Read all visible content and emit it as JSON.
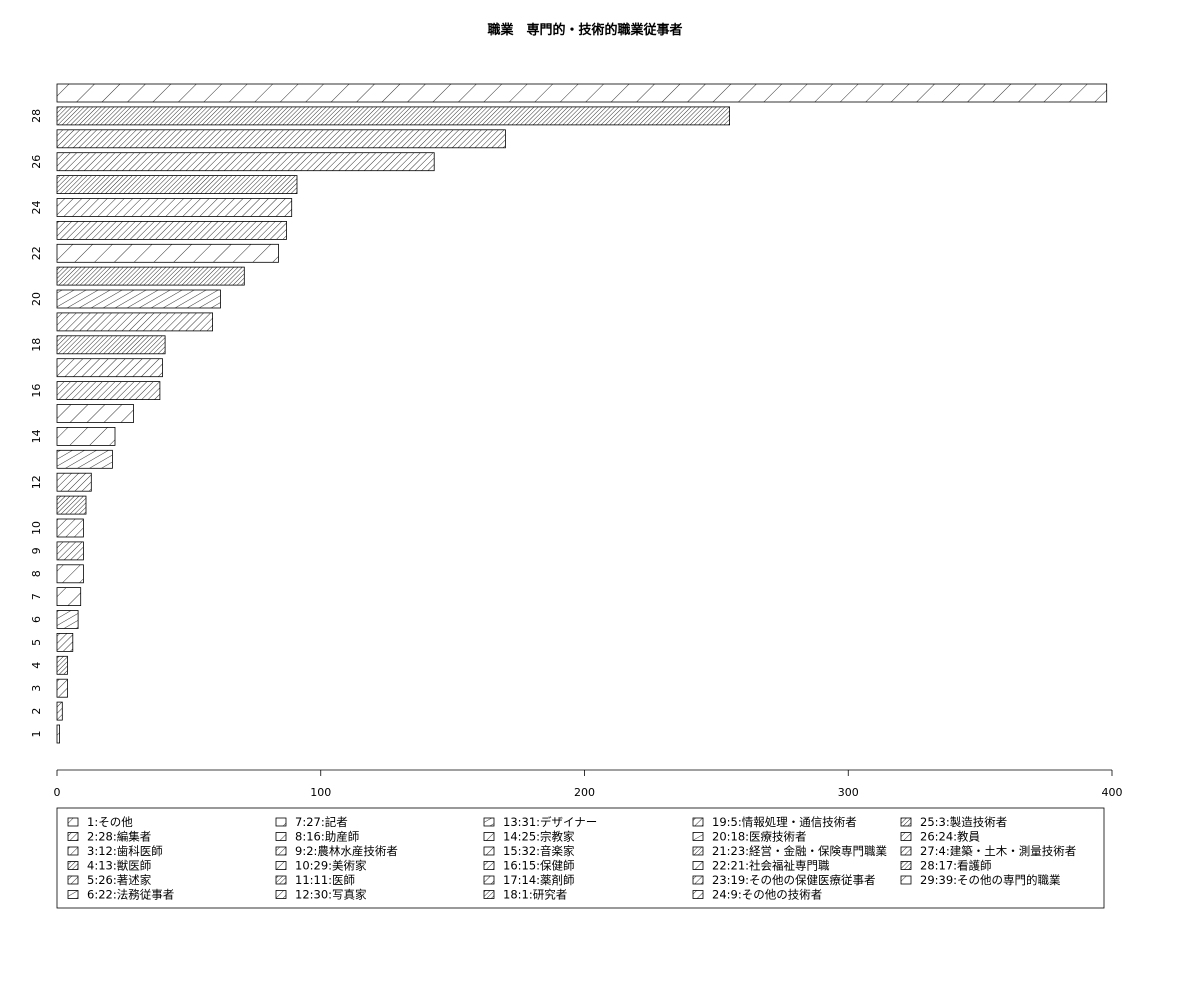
{
  "chart_data": {
    "type": "bar",
    "orientation": "horizontal",
    "title": "職業　専門的・技術的職業従事者",
    "xlabel": "",
    "ylabel": "",
    "xlim": [
      0,
      400
    ],
    "x_ticks": [
      0,
      100,
      200,
      300,
      400
    ],
    "y_ticks": [
      1,
      2,
      3,
      4,
      5,
      6,
      7,
      8,
      9,
      10,
      12,
      14,
      16,
      18,
      20,
      22,
      24,
      26,
      28
    ],
    "grid": false,
    "legend_position": "bottom",
    "bars": [
      {
        "position": 1,
        "value": 1,
        "legend": "1:その他"
      },
      {
        "position": 2,
        "value": 2,
        "legend": "2:28:編集者"
      },
      {
        "position": 3,
        "value": 4,
        "legend": "3:12:歯科医師"
      },
      {
        "position": 4,
        "value": 4,
        "legend": "4:13:獣医師"
      },
      {
        "position": 5,
        "value": 6,
        "legend": "5:26:著述家"
      },
      {
        "position": 6,
        "value": 8,
        "legend": "6:22:法務従事者"
      },
      {
        "position": 7,
        "value": 9,
        "legend": "7:27:記者"
      },
      {
        "position": 8,
        "value": 10,
        "legend": "8:16:助産師"
      },
      {
        "position": 9,
        "value": 10,
        "legend": "9:2:農林水産技術者"
      },
      {
        "position": 10,
        "value": 10,
        "legend": "10:29:美術家"
      },
      {
        "position": 11,
        "value": 11,
        "legend": "11:11:医師"
      },
      {
        "position": 12,
        "value": 13,
        "legend": "12:30:写真家"
      },
      {
        "position": 13,
        "value": 21,
        "legend": "13:31:デザイナー"
      },
      {
        "position": 14,
        "value": 22,
        "legend": "14:25:宗教家"
      },
      {
        "position": 15,
        "value": 29,
        "legend": "15:32:音楽家"
      },
      {
        "position": 16,
        "value": 39,
        "legend": "16:15:保健師"
      },
      {
        "position": 17,
        "value": 40,
        "legend": "17:14:薬剤師"
      },
      {
        "position": 18,
        "value": 41,
        "legend": "18:1:研究者"
      },
      {
        "position": 19,
        "value": 59,
        "legend": "19:5:情報処理・通信技術者"
      },
      {
        "position": 20,
        "value": 62,
        "legend": "20:18:医療技術者"
      },
      {
        "position": 21,
        "value": 71,
        "legend": "21:23:経営・金融・保険専門職業"
      },
      {
        "position": 22,
        "value": 84,
        "legend": "22:21:社会福祉専門職"
      },
      {
        "position": 23,
        "value": 87,
        "legend": "23:19:その他の保健医療従事者"
      },
      {
        "position": 24,
        "value": 89,
        "legend": "24:9:その他の技術者"
      },
      {
        "position": 25,
        "value": 91,
        "legend": "25:3:製造技術者"
      },
      {
        "position": 26,
        "value": 143,
        "legend": "26:24:教員"
      },
      {
        "position": 27,
        "value": 170,
        "legend": "27:4:建築・土木・測量技術者"
      },
      {
        "position": 28,
        "value": 255,
        "legend": "28:17:看護師"
      },
      {
        "position": 29,
        "value": 398,
        "legend": "29:39:その他の専門的職業"
      }
    ],
    "legend_columns": [
      [
        "1:その他",
        "2:28:編集者",
        "3:12:歯科医師",
        "4:13:獣医師",
        "5:26:著述家",
        "6:22:法務従事者"
      ],
      [
        "7:27:記者",
        "8:16:助産師",
        "9:2:農林水産技術者",
        "10:29:美術家",
        "11:11:医師",
        "12:30:写真家"
      ],
      [
        "13:31:デザイナー",
        "14:25:宗教家",
        "15:32:音楽家",
        "16:15:保健師",
        "17:14:薬剤師",
        "18:1:研究者"
      ],
      [
        "19:5:情報処理・通信技術者",
        "20:18:医療技術者",
        "21:23:経営・金融・保険専門職業",
        "22:21:社会福祉専門職",
        "23:19:その他の保健医療従事者",
        "24:9:その他の技術者"
      ],
      [
        "25:3:製造技術者",
        "26:24:教員",
        "27:4:建築・土木・測量技術者",
        "28:17:看護師",
        "29:39:その他の専門的職業"
      ]
    ]
  }
}
